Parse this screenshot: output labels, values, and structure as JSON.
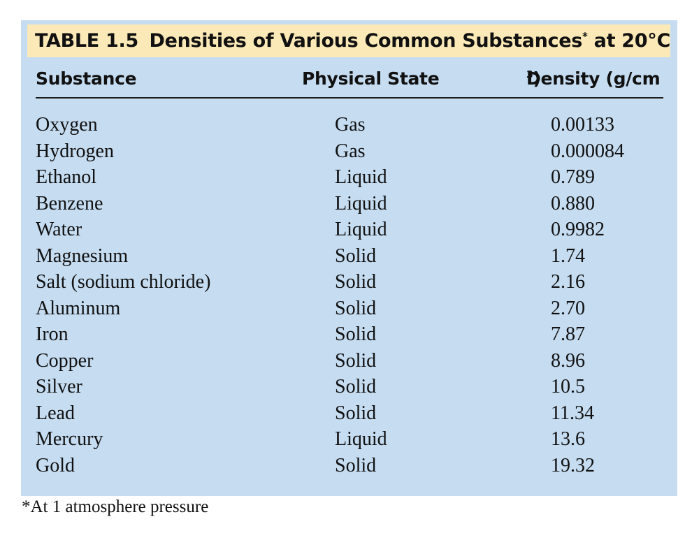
{
  "table": {
    "label": "TABLE 1.5",
    "title_main": "Densities of Various Common Substances",
    "title_mark": "*",
    "title_tail": " at 20°C",
    "headers": {
      "substance": "Substance",
      "state": "Physical State",
      "density": "Density (g/cm",
      "density_sup": "3",
      "density_close": ")"
    },
    "rows": [
      {
        "substance": "Oxygen",
        "state": "Gas",
        "density": "0.00133"
      },
      {
        "substance": "Hydrogen",
        "state": "Gas",
        "density": "0.000084"
      },
      {
        "substance": "Ethanol",
        "state": "Liquid",
        "density": "0.789"
      },
      {
        "substance": "Benzene",
        "state": "Liquid",
        "density": "0.880"
      },
      {
        "substance": "Water",
        "state": "Liquid",
        "density": "0.9982"
      },
      {
        "substance": "Magnesium",
        "state": "Solid",
        "density": "1.74"
      },
      {
        "substance": "Salt (sodium chloride)",
        "state": "Solid",
        "density": "2.16"
      },
      {
        "substance": "Aluminum",
        "state": "Solid",
        "density": "2.70"
      },
      {
        "substance": "Iron",
        "state": "Solid",
        "density": "7.87"
      },
      {
        "substance": "Copper",
        "state": "Solid",
        "density": "8.96"
      },
      {
        "substance": "Silver",
        "state": "Solid",
        "density": "10.5"
      },
      {
        "substance": "Lead",
        "state": "Solid",
        "density": "11.34"
      },
      {
        "substance": "Mercury",
        "state": "Liquid",
        "density": "13.6"
      },
      {
        "substance": "Gold",
        "state": "Solid",
        "density": "19.32"
      }
    ],
    "footnote": "*At 1 atmosphere pressure"
  },
  "colors": {
    "panel_background": "#c5dcf1",
    "title_background": "#fbe9b7",
    "text": "#111111"
  }
}
